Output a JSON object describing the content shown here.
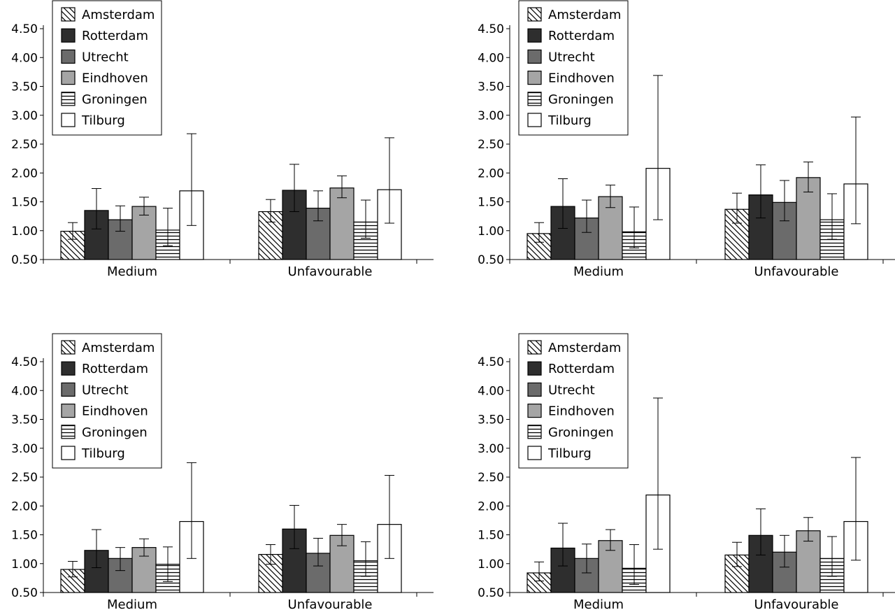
{
  "chart_data": [
    {
      "type": "bar",
      "categories": [
        "Medium",
        "Unfavourable"
      ],
      "ylim": [
        0.5,
        4.6
      ],
      "yticks": [
        "0.50",
        "1.00",
        "1.50",
        "2.00",
        "2.50",
        "3.00",
        "3.50",
        "4.00",
        "4.50"
      ],
      "legend_position": "top-left",
      "grid": false,
      "series": [
        {
          "name": "Amsterdam",
          "values": [
            0.99,
            1.33
          ],
          "err_low": [
            0.85,
            1.15
          ],
          "err_high": [
            1.14,
            1.54
          ]
        },
        {
          "name": "Rotterdam",
          "values": [
            1.35,
            1.7
          ],
          "err_low": [
            1.03,
            1.33
          ],
          "err_high": [
            1.73,
            2.15
          ]
        },
        {
          "name": "Utrecht",
          "values": [
            1.19,
            1.39
          ],
          "err_low": [
            0.99,
            1.17
          ],
          "err_high": [
            1.43,
            1.69
          ]
        },
        {
          "name": "Eindhoven",
          "values": [
            1.42,
            1.74
          ],
          "err_low": [
            1.27,
            1.57
          ],
          "err_high": [
            1.58,
            1.95
          ]
        },
        {
          "name": "Groningen",
          "values": [
            1.01,
            1.15
          ],
          "err_low": [
            0.74,
            0.87
          ],
          "err_high": [
            1.39,
            1.53
          ]
        },
        {
          "name": "Tilburg",
          "values": [
            1.69,
            1.71
          ],
          "err_low": [
            1.09,
            1.13
          ],
          "err_high": [
            2.68,
            2.61
          ]
        }
      ]
    },
    {
      "type": "bar",
      "categories": [
        "Medium",
        "Unfavourable"
      ],
      "ylim": [
        0.5,
        4.6
      ],
      "yticks": [
        "0.50",
        "1.00",
        "1.50",
        "2.00",
        "2.50",
        "3.00",
        "3.50",
        "4.00",
        "4.50"
      ],
      "legend_position": "top-left",
      "grid": false,
      "series": [
        {
          "name": "Amsterdam",
          "values": [
            0.95,
            1.37
          ],
          "err_low": [
            0.8,
            1.13
          ],
          "err_high": [
            1.14,
            1.65
          ]
        },
        {
          "name": "Rotterdam",
          "values": [
            1.42,
            1.62
          ],
          "err_low": [
            1.04,
            1.22
          ],
          "err_high": [
            1.9,
            2.14
          ]
        },
        {
          "name": "Utrecht",
          "values": [
            1.22,
            1.49
          ],
          "err_low": [
            0.97,
            1.17
          ],
          "err_high": [
            1.53,
            1.87
          ]
        },
        {
          "name": "Eindhoven",
          "values": [
            1.59,
            1.92
          ],
          "err_low": [
            1.4,
            1.67
          ],
          "err_high": [
            1.79,
            2.19
          ]
        },
        {
          "name": "Groningen",
          "values": [
            0.98,
            1.19
          ],
          "err_low": [
            0.7,
            0.85
          ],
          "err_high": [
            1.41,
            1.64
          ]
        },
        {
          "name": "Tilburg",
          "values": [
            2.08,
            1.81
          ],
          "err_low": [
            1.19,
            1.12
          ],
          "err_high": [
            3.69,
            2.97
          ]
        }
      ]
    },
    {
      "type": "bar",
      "categories": [
        "Medium",
        "Unfavourable"
      ],
      "ylim": [
        0.5,
        4.6
      ],
      "yticks": [
        "0.50",
        "1.00",
        "1.50",
        "2.00",
        "2.50",
        "3.00",
        "3.50",
        "4.00",
        "4.50"
      ],
      "legend_position": "top-left",
      "grid": false,
      "series": [
        {
          "name": "Amsterdam",
          "values": [
            0.9,
            1.16
          ],
          "err_low": [
            0.77,
            0.99
          ],
          "err_high": [
            1.04,
            1.33
          ]
        },
        {
          "name": "Rotterdam",
          "values": [
            1.23,
            1.6
          ],
          "err_low": [
            0.93,
            1.26
          ],
          "err_high": [
            1.59,
            2.01
          ]
        },
        {
          "name": "Utrecht",
          "values": [
            1.09,
            1.18
          ],
          "err_low": [
            0.88,
            0.96
          ],
          "err_high": [
            1.28,
            1.44
          ]
        },
        {
          "name": "Eindhoven",
          "values": [
            1.28,
            1.49
          ],
          "err_low": [
            1.13,
            1.31
          ],
          "err_high": [
            1.43,
            1.68
          ]
        },
        {
          "name": "Groningen",
          "values": [
            0.99,
            1.05
          ],
          "err_low": [
            0.69,
            0.78
          ],
          "err_high": [
            1.29,
            1.38
          ]
        },
        {
          "name": "Tilburg",
          "values": [
            1.73,
            1.68
          ],
          "err_low": [
            1.09,
            1.09
          ],
          "err_high": [
            2.75,
            2.53
          ]
        }
      ]
    },
    {
      "type": "bar",
      "categories": [
        "Medium",
        "Unfavourable"
      ],
      "ylim": [
        0.5,
        4.6
      ],
      "yticks": [
        "0.50",
        "1.00",
        "1.50",
        "2.00",
        "2.50",
        "3.00",
        "3.50",
        "4.00",
        "4.50"
      ],
      "legend_position": "top-left",
      "grid": false,
      "series": [
        {
          "name": "Amsterdam",
          "values": [
            0.84,
            1.15
          ],
          "err_low": [
            0.7,
            0.95
          ],
          "err_high": [
            1.03,
            1.37
          ]
        },
        {
          "name": "Rotterdam",
          "values": [
            1.27,
            1.49
          ],
          "err_low": [
            0.96,
            1.15
          ],
          "err_high": [
            1.7,
            1.95
          ]
        },
        {
          "name": "Utrecht",
          "values": [
            1.09,
            1.2
          ],
          "err_low": [
            0.84,
            0.94
          ],
          "err_high": [
            1.34,
            1.49
          ]
        },
        {
          "name": "Eindhoven",
          "values": [
            1.4,
            1.57
          ],
          "err_low": [
            1.23,
            1.39
          ],
          "err_high": [
            1.59,
            1.8
          ]
        },
        {
          "name": "Groningen",
          "values": [
            0.92,
            1.09
          ],
          "err_low": [
            0.64,
            0.78
          ],
          "err_high": [
            1.33,
            1.47
          ]
        },
        {
          "name": "Tilburg",
          "values": [
            2.19,
            1.73
          ],
          "err_low": [
            1.25,
            1.06
          ],
          "err_high": [
            3.87,
            2.84
          ]
        }
      ]
    }
  ],
  "series_fills": [
    "hatch-diagonal",
    "#2e2e2e",
    "#6b6b6b",
    "#a5a5a5",
    "hatch-horizontal",
    "#ffffff"
  ]
}
